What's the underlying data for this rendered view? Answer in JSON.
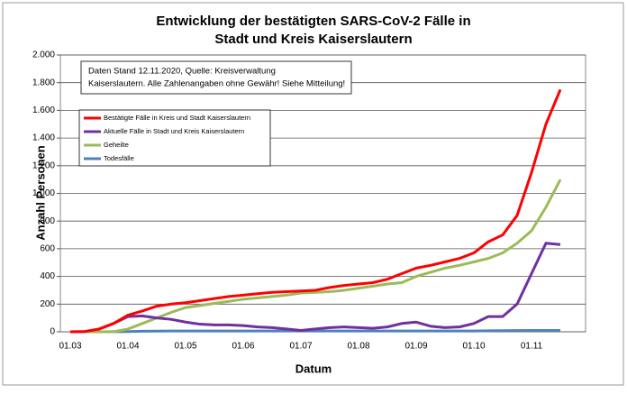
{
  "chart_data": {
    "type": "line",
    "title": [
      "Entwicklung der bestätigten SARS-CoV-2 Fälle in",
      "Stadt und Kreis Kaiserslautern"
    ],
    "annotation": [
      "Daten Stand 12.11.2020, Quelle: Kreisverwaltung",
      "Kaiserslautern. Alle Zahlenangaben ohne Gewähr! Siehe Mitteilung!"
    ],
    "x_label": "Datum",
    "y_label": "Anzahl Personen",
    "categories": [
      "01.03",
      null,
      null,
      null,
      "01.04",
      null,
      null,
      null,
      "01.05",
      null,
      null,
      null,
      "01.06",
      null,
      null,
      null,
      "01.07",
      null,
      null,
      null,
      "01.08",
      null,
      null,
      null,
      "01.09",
      null,
      null,
      null,
      "01.10",
      null,
      null,
      null,
      "01.11",
      null,
      null
    ],
    "series": [
      {
        "name": "Bestätigte Fälle in Kreis und Stadt Kaiserslautern",
        "color": "#ff0000",
        "values": [
          0,
          2,
          20,
          60,
          120,
          150,
          185,
          200,
          210,
          225,
          240,
          255,
          265,
          275,
          285,
          290,
          295,
          300,
          320,
          335,
          345,
          355,
          380,
          420,
          460,
          480,
          505,
          530,
          570,
          650,
          700,
          840,
          1150,
          1500,
          1750
        ]
      },
      {
        "name": "Aktuelle Fälle in Stadt und Kreis Kaiserslautern",
        "color": "#7030a0",
        "values": [
          0,
          2,
          20,
          60,
          110,
          115,
          100,
          90,
          70,
          55,
          50,
          50,
          45,
          35,
          30,
          20,
          10,
          20,
          30,
          35,
          30,
          25,
          35,
          60,
          70,
          40,
          30,
          35,
          60,
          110,
          110,
          200,
          420,
          640,
          630
        ]
      },
      {
        "name": "Geheilte",
        "color": "#9bbb59",
        "values": [
          0,
          0,
          0,
          0,
          20,
          60,
          100,
          140,
          175,
          190,
          205,
          220,
          235,
          245,
          255,
          265,
          280,
          285,
          290,
          300,
          315,
          330,
          345,
          355,
          400,
          430,
          460,
          480,
          505,
          530,
          570,
          640,
          730,
          900,
          1100
        ]
      },
      {
        "name": "Todesfälle",
        "color": "#4f81bd",
        "values": [
          0,
          0,
          0,
          1,
          2,
          4,
          5,
          6,
          6,
          6,
          6,
          6,
          6,
          6,
          6,
          6,
          6,
          6,
          6,
          6,
          6,
          6,
          6,
          6,
          6,
          6,
          6,
          6,
          6,
          7,
          8,
          9,
          10,
          10,
          10
        ]
      }
    ],
    "ylim": [
      0,
      2000
    ],
    "yticks": [
      0,
      200,
      400,
      600,
      800,
      {
        "value": 1000,
        "label": "1.000"
      },
      {
        "value": 1200,
        "label": "1.200"
      },
      {
        "value": 1400,
        "label": "1.400"
      },
      {
        "value": 1600,
        "label": "1.600"
      },
      {
        "value": 1800,
        "label": "1.800"
      },
      {
        "value": 2000,
        "label": "2.000"
      }
    ],
    "grid": true
  }
}
